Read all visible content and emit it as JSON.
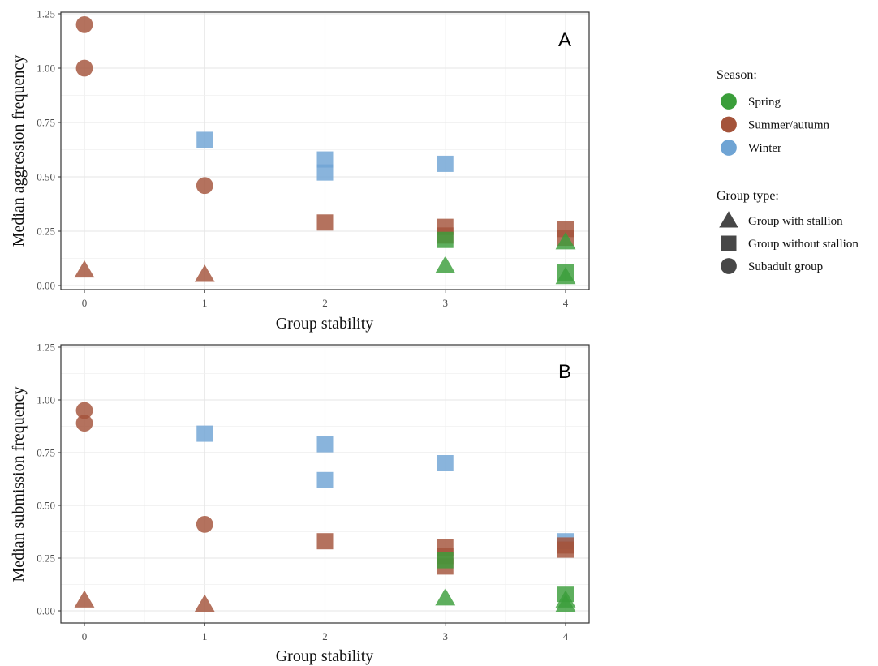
{
  "chart_data": [
    {
      "type": "scatter",
      "panel_label": "A",
      "xlabel": "Group stability",
      "ylabel": "Median aggression frequency",
      "xlim": [
        0,
        4
      ],
      "ylim": [
        0,
        1.25
      ],
      "x_ticks": [
        "0",
        "1",
        "2",
        "3",
        "4"
      ],
      "y_ticks": [
        "0.00",
        "0.25",
        "0.50",
        "0.75",
        "1.00",
        "1.25"
      ],
      "grid": true,
      "points": [
        {
          "x": 0,
          "y": 1.2,
          "season": "Summer/autumn",
          "group": "Subadult group"
        },
        {
          "x": 0,
          "y": 1.0,
          "season": "Summer/autumn",
          "group": "Subadult group"
        },
        {
          "x": 0,
          "y": 0.07,
          "season": "Summer/autumn",
          "group": "Group with stallion"
        },
        {
          "x": 1,
          "y": 0.67,
          "season": "Winter",
          "group": "Group without stallion"
        },
        {
          "x": 1,
          "y": 0.46,
          "season": "Summer/autumn",
          "group": "Subadult group"
        },
        {
          "x": 1,
          "y": 0.05,
          "season": "Summer/autumn",
          "group": "Group with stallion"
        },
        {
          "x": 2,
          "y": 0.58,
          "season": "Winter",
          "group": "Group without stallion"
        },
        {
          "x": 2,
          "y": 0.52,
          "season": "Winter",
          "group": "Group without stallion"
        },
        {
          "x": 2,
          "y": 0.29,
          "season": "Summer/autumn",
          "group": "Group without stallion"
        },
        {
          "x": 3,
          "y": 0.56,
          "season": "Winter",
          "group": "Group without stallion"
        },
        {
          "x": 3,
          "y": 0.27,
          "season": "Summer/autumn",
          "group": "Group without stallion"
        },
        {
          "x": 3,
          "y": 0.23,
          "season": "Summer/autumn",
          "group": "Group without stallion"
        },
        {
          "x": 3,
          "y": 0.21,
          "season": "Spring",
          "group": "Group without stallion"
        },
        {
          "x": 3,
          "y": 0.09,
          "season": "Spring",
          "group": "Group with stallion"
        },
        {
          "x": 4,
          "y": 0.26,
          "season": "Summer/autumn",
          "group": "Group without stallion"
        },
        {
          "x": 4,
          "y": 0.22,
          "season": "Summer/autumn",
          "group": "Group without stallion"
        },
        {
          "x": 4,
          "y": 0.2,
          "season": "Spring",
          "group": "Group with stallion"
        },
        {
          "x": 4,
          "y": 0.06,
          "season": "Spring",
          "group": "Group without stallion"
        },
        {
          "x": 4,
          "y": 0.04,
          "season": "Spring",
          "group": "Group with stallion"
        }
      ]
    },
    {
      "type": "scatter",
      "panel_label": "B",
      "xlabel": "Group stability",
      "ylabel": "Median submission frequency",
      "xlim": [
        0,
        4
      ],
      "ylim": [
        0,
        1.25
      ],
      "x_ticks": [
        "0",
        "1",
        "2",
        "3",
        "4"
      ],
      "y_ticks": [
        "0.00",
        "0.25",
        "0.50",
        "0.75",
        "1.00",
        "1.25"
      ],
      "grid": true,
      "points": [
        {
          "x": 0,
          "y": 0.95,
          "season": "Summer/autumn",
          "group": "Subadult group"
        },
        {
          "x": 0,
          "y": 0.89,
          "season": "Summer/autumn",
          "group": "Subadult group"
        },
        {
          "x": 0,
          "y": 0.05,
          "season": "Summer/autumn",
          "group": "Group with stallion"
        },
        {
          "x": 1,
          "y": 0.84,
          "season": "Winter",
          "group": "Group without stallion"
        },
        {
          "x": 1,
          "y": 0.41,
          "season": "Summer/autumn",
          "group": "Subadult group"
        },
        {
          "x": 1,
          "y": 0.03,
          "season": "Summer/autumn",
          "group": "Group with stallion"
        },
        {
          "x": 2,
          "y": 0.79,
          "season": "Winter",
          "group": "Group without stallion"
        },
        {
          "x": 2,
          "y": 0.62,
          "season": "Winter",
          "group": "Group without stallion"
        },
        {
          "x": 2,
          "y": 0.33,
          "season": "Summer/autumn",
          "group": "Group without stallion"
        },
        {
          "x": 3,
          "y": 0.7,
          "season": "Winter",
          "group": "Group without stallion"
        },
        {
          "x": 3,
          "y": 0.3,
          "season": "Summer/autumn",
          "group": "Group without stallion"
        },
        {
          "x": 3,
          "y": 0.26,
          "season": "Summer/autumn",
          "group": "Group without stallion"
        },
        {
          "x": 3,
          "y": 0.21,
          "season": "Summer/autumn",
          "group": "Group without stallion"
        },
        {
          "x": 3,
          "y": 0.24,
          "season": "Spring",
          "group": "Group without stallion"
        },
        {
          "x": 3,
          "y": 0.06,
          "season": "Spring",
          "group": "Group with stallion"
        },
        {
          "x": 4,
          "y": 0.33,
          "season": "Winter",
          "group": "Group without stallion"
        },
        {
          "x": 4,
          "y": 0.31,
          "season": "Summer/autumn",
          "group": "Group without stallion"
        },
        {
          "x": 4,
          "y": 0.29,
          "season": "Summer/autumn",
          "group": "Group without stallion"
        },
        {
          "x": 4,
          "y": 0.08,
          "season": "Spring",
          "group": "Group without stallion"
        },
        {
          "x": 4,
          "y": 0.05,
          "season": "Spring",
          "group": "Group with stallion"
        },
        {
          "x": 4,
          "y": 0.03,
          "season": "Spring",
          "group": "Group with stallion"
        }
      ]
    }
  ],
  "legend": {
    "placement": "right",
    "season_title": "Season:",
    "seasons": [
      {
        "name": "Spring",
        "color": "#3a9e3a"
      },
      {
        "name": "Summer/autumn",
        "color": "#a4533a"
      },
      {
        "name": "Winter",
        "color": "#6fa4d4"
      }
    ],
    "group_title": "Group type:",
    "groups": [
      {
        "name": "Group with stallion",
        "shape": "triangle"
      },
      {
        "name": "Group without stallion",
        "shape": "square"
      },
      {
        "name": "Subadult group",
        "shape": "circle"
      }
    ],
    "shape_color": "#474747"
  }
}
